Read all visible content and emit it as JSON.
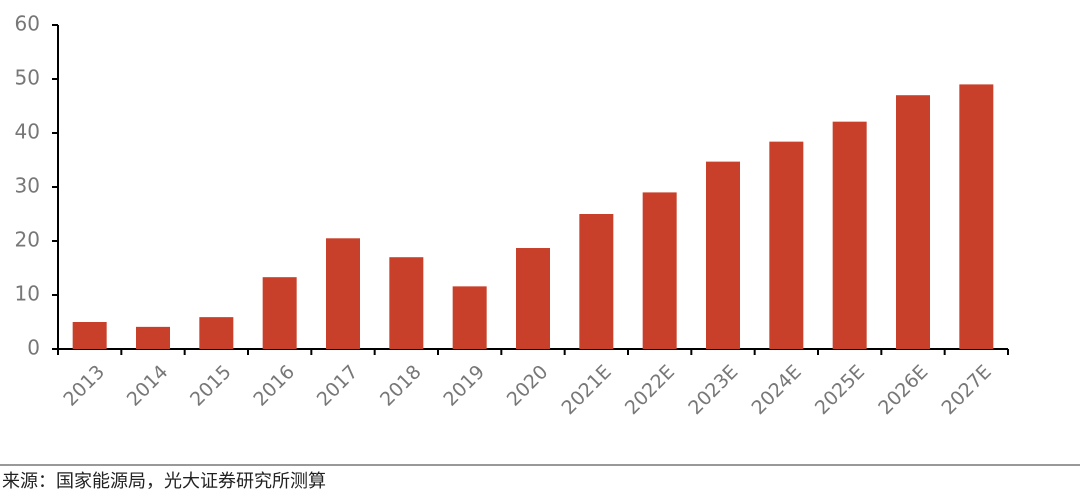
{
  "chart_data": {
    "type": "bar",
    "categories": [
      "2013",
      "2014",
      "2015",
      "2016",
      "2017",
      "2018",
      "2019",
      "2020",
      "2021E",
      "2022E",
      "2023E",
      "2024E",
      "2025E",
      "2026E",
      "2027E"
    ],
    "values": [
      5,
      4.1,
      5.9,
      13.3,
      20.5,
      17,
      11.6,
      18.7,
      25,
      29,
      34.7,
      38.4,
      42.1,
      47,
      49
    ],
    "color": "#c8402a",
    "ylim": [
      0,
      60
    ],
    "yticks": [
      0,
      10,
      20,
      30,
      40,
      50,
      60
    ],
    "grid": false,
    "source": "来源：国家能源局，光大证券研究所测算"
  }
}
